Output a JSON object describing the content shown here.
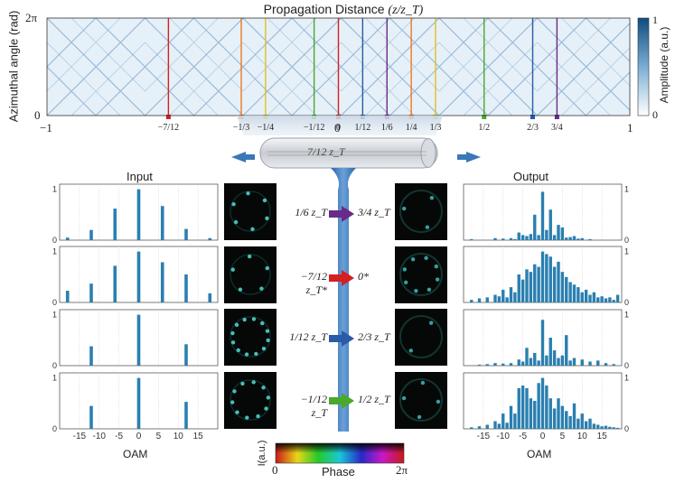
{
  "carpet": {
    "title": "Propagation Distance",
    "title_math": "(z/z_T)",
    "ylabel": "Azimuthal angle (rad)",
    "y_ticks": [
      "2π",
      "0"
    ],
    "x_ticks": [
      "−1",
      "0",
      "1"
    ],
    "colorbar_label": "Amplitude (a.u.)",
    "colorbar_ticks": [
      "1",
      "0"
    ],
    "markers": [
      {
        "pos": -0.5833,
        "label": "−7/12",
        "color": "#d42020"
      },
      {
        "pos": -0.3333,
        "label": "−1/3",
        "color": "#f07820"
      },
      {
        "pos": -0.25,
        "label": "−1/4",
        "color": "#e0c020"
      },
      {
        "pos": -0.0833,
        "label": "−1/12",
        "color": "#4aa82a"
      },
      {
        "pos": 0.0,
        "label": "0",
        "color": "#d42020"
      },
      {
        "pos": 0.0833,
        "label": "1/12",
        "color": "#2a5aa8"
      },
      {
        "pos": 0.1667,
        "label": "1/6",
        "color": "#6a2a88"
      },
      {
        "pos": 0.25,
        "label": "1/4",
        "color": "#f07820"
      },
      {
        "pos": 0.3333,
        "label": "1/3",
        "color": "#e0c020"
      },
      {
        "pos": 0.5,
        "label": "1/2",
        "color": "#4aa82a"
      },
      {
        "pos": 0.6667,
        "label": "2/3",
        "color": "#2a5aa8"
      },
      {
        "pos": 0.75,
        "label": "3/4",
        "color": "#6a2a88"
      }
    ]
  },
  "fiber": {
    "label": "7/12 z_T"
  },
  "input_title": "Input",
  "output_title": "Output",
  "oam_label": "OAM",
  "phase_label": "Phase",
  "intensity_label": "I(a.u.)",
  "phase_ticks": [
    "0",
    "2π"
  ],
  "rows": [
    {
      "from": "1/6 z_T",
      "to": "3/4 z_T",
      "arrow_color": "#6a2a88"
    },
    {
      "from": "−7/12 z_T*",
      "to": "0*",
      "arrow_color": "#d42020"
    },
    {
      "from": "1/12 z_T",
      "to": "2/3 z_T",
      "arrow_color": "#2a5aa8"
    },
    {
      "from": "−1/12 z_T",
      "to": "1/2 z_T",
      "arrow_color": "#4aa82a"
    }
  ],
  "chart_data": [
    {
      "type": "bar",
      "panel": "input-1",
      "x": [
        -18,
        -12,
        -6,
        0,
        6,
        12,
        18
      ],
      "values": [
        0.05,
        0.2,
        0.62,
        1.0,
        0.67,
        0.22,
        0.04
      ],
      "ylim": [
        0,
        1.1
      ],
      "xlim": [
        -20,
        20
      ],
      "xlabel": "",
      "yticks": [
        0,
        1
      ]
    },
    {
      "type": "bar",
      "panel": "input-2",
      "x": [
        -18,
        -12,
        -6,
        0,
        6,
        12,
        18
      ],
      "values": [
        0.23,
        0.37,
        0.72,
        1.0,
        0.79,
        0.55,
        0.18
      ],
      "ylim": [
        0,
        1.1
      ],
      "xlim": [
        -20,
        20
      ],
      "xlabel": "",
      "yticks": [
        0,
        1
      ]
    },
    {
      "type": "bar",
      "panel": "input-3",
      "x": [
        -12,
        0,
        12
      ],
      "values": [
        0.38,
        1.0,
        0.42
      ],
      "ylim": [
        0,
        1.1
      ],
      "xlim": [
        -20,
        20
      ],
      "xlabel": "",
      "yticks": [
        0,
        1
      ]
    },
    {
      "type": "bar",
      "panel": "input-4",
      "x": [
        -12,
        0,
        12
      ],
      "values": [
        0.45,
        1.0,
        0.53
      ],
      "ylim": [
        0,
        1.1
      ],
      "xlim": [
        -20,
        20
      ],
      "xlabel": "OAM",
      "xticks": [
        -15,
        -10,
        -5,
        0,
        5,
        10,
        15
      ],
      "yticks": [
        0,
        1
      ]
    },
    {
      "type": "bar",
      "panel": "output-1",
      "x": [
        -18,
        -12,
        -10,
        -8,
        -7,
        -6,
        -5,
        -4,
        -3,
        -2,
        -1,
        0,
        1,
        2,
        3,
        4,
        5,
        6,
        7,
        8,
        9,
        10,
        12
      ],
      "values": [
        0.02,
        0.04,
        0.03,
        0.04,
        0.02,
        0.15,
        0.1,
        0.08,
        0.12,
        0.5,
        0.1,
        0.95,
        0.2,
        0.6,
        0.1,
        0.3,
        0.25,
        0.05,
        0.06,
        0.08,
        0.03,
        0.04,
        0.02
      ],
      "ylim": [
        0,
        1.1
      ],
      "xlim": [
        -20,
        20
      ],
      "xlabel": "",
      "yticks": [
        0,
        1
      ]
    },
    {
      "type": "bar",
      "panel": "output-2",
      "x": [
        -18,
        -16,
        -14,
        -12,
        -11,
        -10,
        -9,
        -8,
        -7,
        -6,
        -5,
        -4,
        -3,
        -2,
        -1,
        0,
        1,
        2,
        3,
        4,
        5,
        6,
        7,
        8,
        9,
        10,
        11,
        12,
        13,
        14,
        15,
        16,
        17,
        18,
        19
      ],
      "values": [
        0.05,
        0.08,
        0.1,
        0.15,
        0.12,
        0.25,
        0.1,
        0.3,
        0.2,
        0.55,
        0.45,
        0.65,
        0.6,
        0.75,
        0.7,
        1.0,
        0.95,
        0.9,
        0.7,
        0.8,
        0.6,
        0.5,
        0.4,
        0.35,
        0.3,
        0.2,
        0.25,
        0.15,
        0.2,
        0.1,
        0.12,
        0.08,
        0.1,
        0.05,
        0.15
      ],
      "ylim": [
        0,
        1.1
      ],
      "xlim": [
        -20,
        20
      ],
      "xlabel": "",
      "yticks": [
        0,
        1
      ]
    },
    {
      "type": "bar",
      "panel": "output-3",
      "x": [
        -16,
        -14,
        -12,
        -10,
        -8,
        -6,
        -5,
        -4,
        -3,
        -2,
        -1,
        0,
        1,
        2,
        3,
        4,
        5,
        6,
        7,
        8,
        10,
        12,
        14,
        16,
        18
      ],
      "values": [
        0.02,
        0.03,
        0.05,
        0.04,
        0.05,
        0.12,
        0.08,
        0.35,
        0.15,
        0.25,
        0.1,
        0.9,
        0.2,
        0.55,
        0.3,
        0.15,
        0.2,
        0.6,
        0.1,
        0.15,
        0.12,
        0.08,
        0.1,
        0.05,
        0.03
      ],
      "ylim": [
        0,
        1.1
      ],
      "xlim": [
        -20,
        20
      ],
      "xlabel": "",
      "yticks": [
        0,
        1
      ]
    },
    {
      "type": "bar",
      "panel": "output-4",
      "x": [
        -18,
        -16,
        -14,
        -12,
        -11,
        -10,
        -9,
        -8,
        -7,
        -6,
        -5,
        -4,
        -3,
        -2,
        -1,
        0,
        1,
        2,
        3,
        4,
        5,
        6,
        7,
        8,
        9,
        10,
        11,
        12,
        13,
        14,
        15,
        16,
        17,
        18,
        19
      ],
      "values": [
        0.03,
        0.05,
        0.08,
        0.15,
        0.1,
        0.3,
        0.12,
        0.45,
        0.3,
        0.8,
        0.85,
        0.8,
        0.6,
        0.55,
        0.9,
        1.0,
        0.85,
        0.6,
        0.4,
        0.6,
        0.45,
        0.35,
        0.25,
        0.5,
        0.2,
        0.3,
        0.15,
        0.2,
        0.1,
        0.08,
        0.05,
        0.06,
        0.04,
        0.03,
        0.02
      ],
      "ylim": [
        0,
        1.1
      ],
      "xlim": [
        -20,
        20
      ],
      "xlabel": "OAM",
      "xticks": [
        -15,
        -10,
        -5,
        0,
        5,
        10,
        15
      ],
      "yticks": [
        0,
        1
      ]
    }
  ]
}
